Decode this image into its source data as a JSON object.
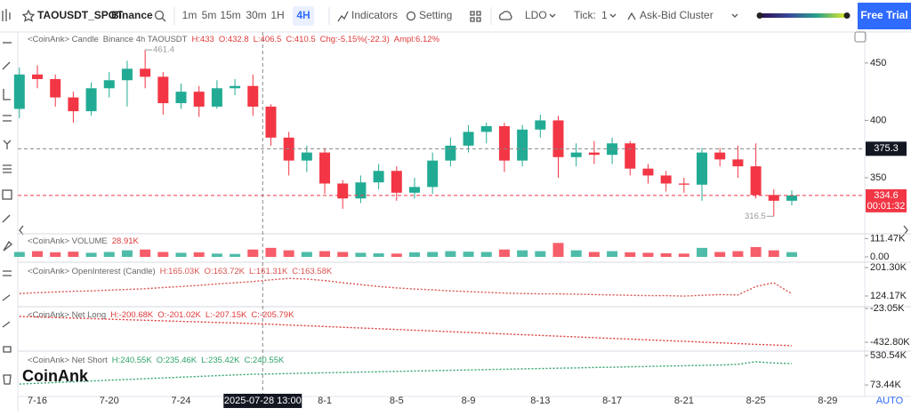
{
  "toolbar": {
    "symbol": "TAOUSDT_SPOT",
    "exchange": "Binance",
    "intervals": [
      "1m",
      "5m",
      "15m",
      "30m",
      "1H",
      "4H"
    ],
    "selected": "4H",
    "indicators": "Indicators",
    "setting": "Setting",
    "coin": "LDO",
    "tick_label": "Tick:",
    "tick_value": 1,
    "cluster": "Ask-Bid Cluster",
    "cta": "Free Trial"
  },
  "watermark": "CoinAnk",
  "scale_mode": "AUTO",
  "chart_data": [
    {
      "type": "candlestick",
      "source": "<CoinAnk> Candle",
      "market": "Binance 4h TAOUSDT",
      "legend": [
        "H:433",
        "O:432.8",
        "L:406.5",
        "C:410.5",
        "Chg:-5.15%(-22.3)",
        "Ampl:6.12%"
      ],
      "categories": [
        null,
        "7-16",
        null,
        null,
        null,
        "7-20",
        null,
        null,
        null,
        "7-24",
        null,
        null,
        null,
        null,
        null,
        null,
        null,
        "8-1",
        null,
        null,
        null,
        "8-5",
        null,
        null,
        null,
        "8-9",
        null,
        null,
        null,
        "8-13",
        null,
        null,
        null,
        "8-17",
        null,
        null,
        null,
        "8-21",
        null,
        null,
        null,
        "8-25",
        null,
        null,
        null,
        "8-29"
      ],
      "open": [
        410,
        440,
        436,
        420,
        408,
        428,
        435,
        445,
        438,
        415,
        425,
        412,
        428,
        430,
        412,
        385,
        365,
        372,
        345,
        332,
        346,
        356,
        337,
        342,
        365,
        378,
        390,
        395,
        365,
        392,
        400,
        368,
        372,
        370,
        380,
        358,
        352,
        345,
        344,
        372,
        366,
        360,
        335,
        330,
        null,
        null
      ],
      "high": [
        446,
        448,
        440,
        425,
        433,
        442,
        452,
        461.4,
        442,
        432,
        430,
        435,
        436,
        440,
        414,
        390,
        378,
        376,
        348,
        352,
        362,
        360,
        350,
        372,
        385,
        396,
        398,
        398,
        396,
        405,
        404,
        380,
        382,
        385,
        382,
        362,
        356,
        350,
        376,
        376,
        378,
        380,
        340,
        339,
        null,
        null
      ],
      "low": [
        402,
        428,
        412,
        398,
        404,
        420,
        412,
        428,
        405,
        410,
        403,
        410,
        422,
        404,
        378,
        352,
        355,
        336,
        323,
        328,
        340,
        330,
        332,
        336,
        360,
        372,
        380,
        355,
        360,
        385,
        350,
        360,
        362,
        362,
        352,
        345,
        338,
        337,
        330,
        360,
        350,
        332,
        316.5,
        326,
        null,
        null
      ],
      "close": [
        440,
        436,
        420,
        408,
        428,
        435,
        445,
        438,
        415,
        425,
        412,
        428,
        430,
        412,
        385,
        365,
        372,
        345,
        332,
        346,
        356,
        337,
        342,
        365,
        378,
        390,
        395,
        365,
        392,
        400,
        368,
        372,
        370,
        380,
        358,
        352,
        345,
        344,
        372,
        366,
        360,
        335,
        330,
        334.6,
        null,
        null
      ],
      "up_color": "#22ab94",
      "down_color": "#f23645",
      "ylim": [
        302,
        477
      ],
      "yticks": [
        350,
        400,
        450
      ],
      "grid": false,
      "crosshair": {
        "x_label": "2025-07-28 13:00",
        "price": 375.3
      },
      "countdown": "00:01:32"
    },
    {
      "type": "volume",
      "title": "<CoinAnk> VOLUME",
      "value_label": "28.91K",
      "values": [
        30,
        35,
        28,
        32,
        25,
        30,
        40,
        45,
        30,
        25,
        28,
        20,
        18,
        45,
        55,
        40,
        30,
        35,
        30,
        25,
        22,
        20,
        28,
        30,
        35,
        32,
        30,
        45,
        40,
        35,
        85,
        40,
        30,
        35,
        28,
        25,
        22,
        20,
        55,
        30,
        35,
        60,
        40,
        28.91,
        null,
        null
      ],
      "ylim": [
        0,
        130
      ],
      "yticks": [
        {
          "value": 111.47,
          "label": "111.47K"
        },
        {
          "value": 0,
          "label": "0.00"
        }
      ]
    },
    {
      "type": "line",
      "title": "<CoinAnk> OpenInterest (Candle)",
      "legend": [
        "H:165.03K",
        "O:163.72K",
        "L:161.31K",
        "C:163.58K"
      ],
      "values": [
        131,
        133,
        135,
        137,
        138,
        140,
        142,
        144,
        147,
        150,
        153,
        157,
        160,
        163.58,
        168,
        172,
        170,
        166,
        160,
        155,
        150,
        146,
        143,
        141,
        138,
        136,
        134,
        132,
        131,
        130,
        130,
        129,
        128,
        127,
        126,
        125,
        125,
        124,
        126,
        128,
        127,
        150,
        160,
        130,
        null,
        null
      ],
      "color": "#d9534f",
      "ylim": [
        100,
        211
      ],
      "yticks": [
        {
          "value": 201.3,
          "label": "201.30K"
        },
        {
          "value": 124.17,
          "label": "124.17K"
        }
      ]
    },
    {
      "type": "line",
      "title": "<CoinAnk> Net Long",
      "legend": [
        "H:-200.68K",
        "O:-201.02K",
        "L:-207.15K",
        "C:-205.79K"
      ],
      "values": [
        -120,
        -127,
        -133,
        -140,
        -146,
        -153,
        -160,
        -166,
        -173,
        -180,
        -186,
        -193,
        -199,
        -205.79,
        -215,
        -224,
        -233,
        -242,
        -251,
        -260,
        -269,
        -278,
        -287,
        -296,
        -305,
        -314,
        -323,
        -332,
        -341,
        -350,
        -359,
        -368,
        -377,
        -386,
        -395,
        -404,
        -413,
        -422,
        -431,
        -440,
        -449,
        -458,
        -466,
        -475,
        null,
        null
      ],
      "color": "#e03a3a",
      "ylim": [
        -508,
        -12
      ],
      "yticks": [
        {
          "value": -23.05,
          "label": "-23.05K"
        },
        {
          "value": -432.8,
          "label": "-432.80K"
        }
      ]
    },
    {
      "type": "line",
      "title": "<CoinAnk> Net Short",
      "legend": [
        "H:240.55K",
        "O:235.46K",
        "L:235.42K",
        "C:240.55K"
      ],
      "values": [
        87,
        99,
        111,
        123,
        135,
        147,
        158,
        170,
        182,
        194,
        206,
        218,
        229,
        240.55,
        245,
        251,
        257,
        262,
        268,
        273,
        279,
        284,
        290,
        295,
        301,
        306,
        312,
        317,
        323,
        328,
        334,
        339,
        345,
        350,
        356,
        361,
        367,
        372,
        378,
        383,
        395,
        434,
        415,
        406,
        null,
        null
      ],
      "color": "#2ea36b",
      "ylim": [
        -64,
        572
      ],
      "yticks": [
        {
          "value": 530.54,
          "label": "530.54K"
        },
        {
          "value": 73.44,
          "label": "73.44K"
        }
      ]
    }
  ]
}
